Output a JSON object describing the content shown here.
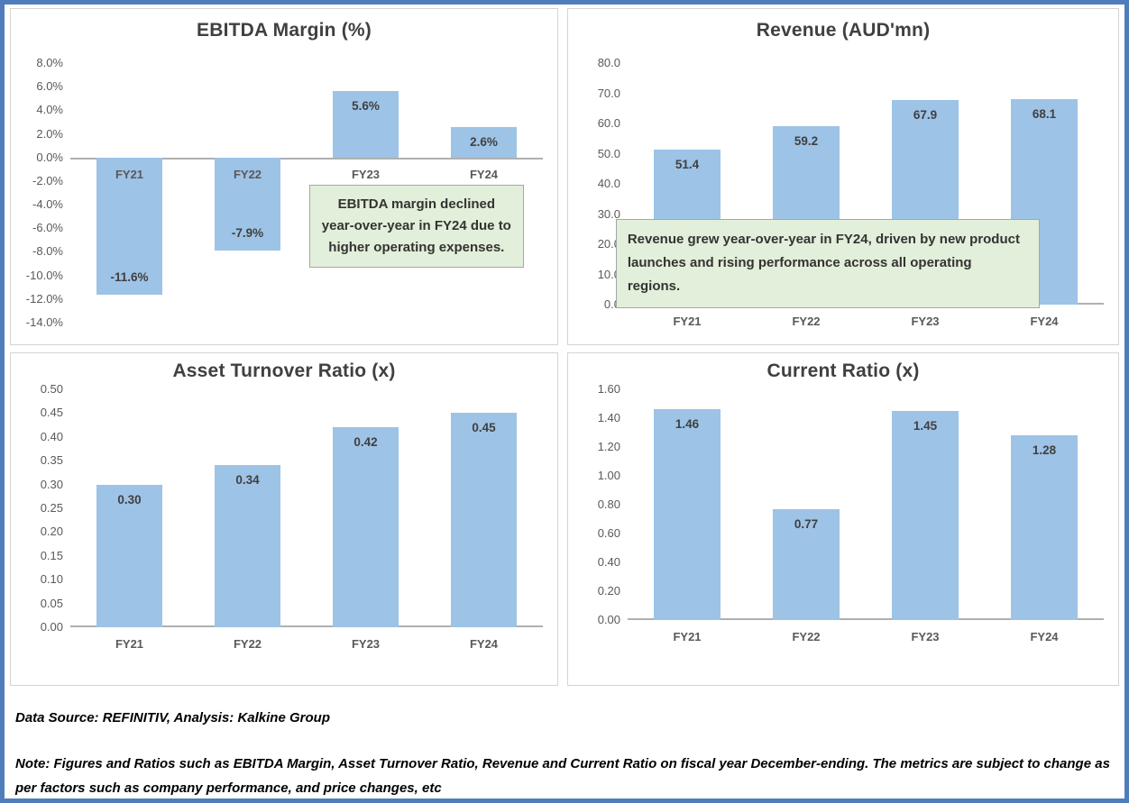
{
  "page": {
    "frame_color": "#4f7dbb",
    "bar_color": "#9dc3e6",
    "annotation_bg": "#e2efda"
  },
  "chart_data": [
    {
      "type": "bar",
      "title": "EBITDA Margin (%)",
      "categories": [
        "FY21",
        "FY22",
        "FY23",
        "FY24"
      ],
      "values": [
        -11.6,
        -7.9,
        5.6,
        2.6
      ],
      "labels": [
        "-11.6%",
        "-7.9%",
        "5.6%",
        "2.6%"
      ],
      "ylim": [
        -14,
        8
      ],
      "yticks": [
        {
          "label": "8.0%",
          "value": 8
        },
        {
          "label": "6.0%",
          "value": 6
        },
        {
          "label": "4.0%",
          "value": 4
        },
        {
          "label": "2.0%",
          "value": 2
        },
        {
          "label": "0.0%",
          "value": 0
        },
        {
          "label": "-2.0%",
          "value": -2
        },
        {
          "label": "-4.0%",
          "value": -4
        },
        {
          "label": "-6.0%",
          "value": -6
        },
        {
          "label": "-8.0%",
          "value": -8
        },
        {
          "label": "-10.0%",
          "value": -10
        },
        {
          "label": "-12.0%",
          "value": -12
        },
        {
          "label": "-14.0%",
          "value": -14
        }
      ],
      "category_label_position": "axis",
      "grid": false,
      "legend": false,
      "annotation": {
        "text": "EBITDA margin declined year-over-year in FY24 due to higher operating expenses."
      }
    },
    {
      "type": "bar",
      "title": "Revenue (AUD'mn)",
      "categories": [
        "FY21",
        "FY22",
        "FY23",
        "FY24"
      ],
      "values": [
        51.4,
        59.2,
        67.9,
        68.1
      ],
      "labels": [
        "51.4",
        "59.2",
        "67.9",
        "68.1"
      ],
      "ylim": [
        0,
        80
      ],
      "yticks": [
        {
          "label": "80.0",
          "value": 80
        },
        {
          "label": "70.0",
          "value": 70
        },
        {
          "label": "60.0",
          "value": 60
        },
        {
          "label": "50.0",
          "value": 50
        },
        {
          "label": "40.0",
          "value": 40
        },
        {
          "label": "30.0",
          "value": 30
        },
        {
          "label": "20.0",
          "value": 20
        },
        {
          "label": "10.0",
          "value": 10
        },
        {
          "label": "0.0",
          "value": 0
        }
      ],
      "category_label_position": "bottom",
      "grid": false,
      "legend": false,
      "annotation": {
        "text": "Revenue grew year-over-year in FY24, driven by new product launches and rising performance across all operating regions."
      }
    },
    {
      "type": "bar",
      "title": "Asset Turnover Ratio (x)",
      "categories": [
        "FY21",
        "FY22",
        "FY23",
        "FY24"
      ],
      "values": [
        0.3,
        0.34,
        0.42,
        0.45
      ],
      "labels": [
        "0.30",
        "0.34",
        "0.42",
        "0.45"
      ],
      "ylim": [
        0,
        0.5
      ],
      "yticks": [
        {
          "label": "0.50",
          "value": 0.5
        },
        {
          "label": "0.45",
          "value": 0.45
        },
        {
          "label": "0.40",
          "value": 0.4
        },
        {
          "label": "0.35",
          "value": 0.35
        },
        {
          "label": "0.30",
          "value": 0.3
        },
        {
          "label": "0.25",
          "value": 0.25
        },
        {
          "label": "0.20",
          "value": 0.2
        },
        {
          "label": "0.15",
          "value": 0.15
        },
        {
          "label": "0.10",
          "value": 0.1
        },
        {
          "label": "0.05",
          "value": 0.05
        },
        {
          "label": "0.00",
          "value": 0.0
        }
      ],
      "category_label_position": "bottom",
      "grid": false,
      "legend": false
    },
    {
      "type": "bar",
      "title": "Current Ratio (x)",
      "categories": [
        "FY21",
        "FY22",
        "FY23",
        "FY24"
      ],
      "values": [
        1.46,
        0.77,
        1.45,
        1.28
      ],
      "labels": [
        "1.46",
        "0.77",
        "1.45",
        "1.28"
      ],
      "ylim": [
        0,
        1.6
      ],
      "yticks": [
        {
          "label": "1.60",
          "value": 1.6
        },
        {
          "label": "1.40",
          "value": 1.4
        },
        {
          "label": "1.20",
          "value": 1.2
        },
        {
          "label": "1.00",
          "value": 1.0
        },
        {
          "label": "0.80",
          "value": 0.8
        },
        {
          "label": "0.60",
          "value": 0.6
        },
        {
          "label": "0.40",
          "value": 0.4
        },
        {
          "label": "0.20",
          "value": 0.2
        },
        {
          "label": "0.00",
          "value": 0.0
        }
      ],
      "category_label_position": "bottom",
      "grid": false,
      "legend": false
    }
  ],
  "footer": {
    "source_line": "Data Source: REFINITIV, Analysis: Kalkine Group",
    "note_line": "Note: Figures and Ratios such as EBITDA Margin, Asset Turnover Ratio, Revenue and Current Ratio on fiscal year December-ending. The metrics are subject to change as per factors such as company performance, and price changes, etc"
  }
}
